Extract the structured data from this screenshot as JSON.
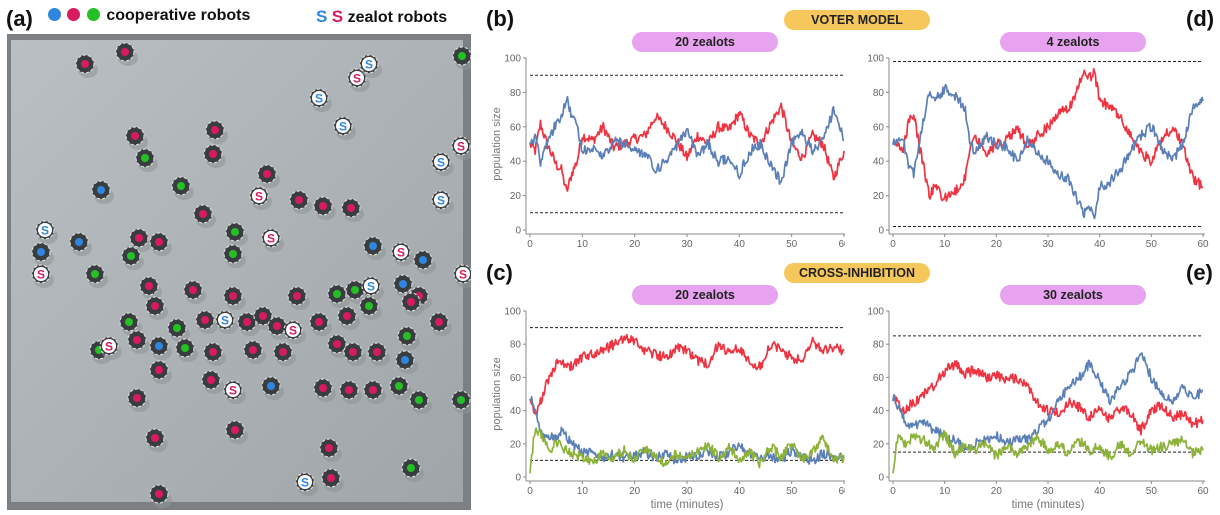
{
  "labels": {
    "a": "(a)",
    "b": "(b)",
    "c": "(c)",
    "d": "(d)",
    "e": "(e)",
    "cooperative": "cooperative robots",
    "zealot": "zealot robots",
    "zealot_glyph": "S",
    "voter_model": "VOTER MODEL",
    "cross_inhibition": "CROSS-INHIBITION"
  },
  "colors": {
    "red": "#ef3340",
    "blue": "#5b80b8",
    "green": "#8db23a",
    "coop_blue": "#2f86e0",
    "coop_pink": "#d81b60",
    "coop_green": "#25c025",
    "pill_violet": "#e7a3f0",
    "pill_orange": "#f6c85c"
  },
  "chart_data": [
    {
      "panel": "b",
      "type": "line",
      "title": "20 zealots",
      "xlabel": "",
      "ylabel": "population size",
      "xlim": [
        0,
        60
      ],
      "ylim": [
        0,
        100
      ],
      "xticks": [
        "0",
        "10",
        "20",
        "30",
        "40",
        "50",
        "60"
      ],
      "yticks": [
        "0",
        "20",
        "40",
        "60",
        "80",
        "100"
      ],
      "thresholds": [
        90,
        10
      ],
      "series": [
        {
          "color": "red",
          "x": [
            0,
            1,
            2,
            3,
            4,
            5,
            6,
            7,
            8,
            9,
            10,
            12,
            14,
            16,
            18,
            20,
            22,
            24,
            26,
            28,
            30,
            32,
            34,
            36,
            38,
            40,
            42,
            44,
            46,
            48,
            50,
            52,
            54,
            56,
            58,
            60
          ],
          "values": [
            50,
            46,
            62,
            52,
            45,
            38,
            35,
            22,
            33,
            40,
            55,
            52,
            60,
            48,
            50,
            53,
            55,
            66,
            60,
            52,
            42,
            55,
            50,
            60,
            58,
            68,
            55,
            50,
            62,
            72,
            50,
            42,
            55,
            50,
            30,
            46
          ]
        },
        {
          "color": "blue",
          "x": [
            0,
            1,
            2,
            3,
            4,
            5,
            6,
            7,
            8,
            9,
            10,
            12,
            14,
            16,
            18,
            20,
            22,
            24,
            26,
            28,
            30,
            32,
            34,
            36,
            38,
            40,
            42,
            44,
            46,
            48,
            50,
            52,
            54,
            56,
            58,
            60
          ],
          "values": [
            50,
            54,
            40,
            50,
            56,
            62,
            66,
            78,
            66,
            60,
            46,
            48,
            42,
            52,
            50,
            47,
            44,
            35,
            40,
            48,
            58,
            44,
            50,
            40,
            42,
            32,
            46,
            50,
            38,
            28,
            50,
            58,
            45,
            52,
            70,
            52
          ]
        }
      ]
    },
    {
      "panel": "d",
      "type": "line",
      "title": "4 zealots",
      "xlabel": "",
      "ylabel": "",
      "xlim": [
        0,
        60
      ],
      "ylim": [
        0,
        100
      ],
      "xticks": [
        "0",
        "10",
        "20",
        "30",
        "40",
        "50",
        "60"
      ],
      "yticks": [
        "0",
        "20",
        "40",
        "60",
        "80",
        "100"
      ],
      "thresholds": [
        98,
        2
      ],
      "series": [
        {
          "color": "red",
          "x": [
            0,
            2,
            3,
            4,
            5,
            6,
            7,
            8,
            10,
            12,
            14,
            15,
            16,
            18,
            20,
            22,
            24,
            26,
            28,
            30,
            32,
            34,
            36,
            37,
            38,
            39,
            40,
            42,
            44,
            46,
            48,
            50,
            52,
            54,
            56,
            58,
            60
          ],
          "values": [
            50,
            48,
            62,
            68,
            50,
            36,
            20,
            25,
            18,
            22,
            30,
            50,
            55,
            45,
            50,
            52,
            60,
            48,
            55,
            60,
            68,
            70,
            85,
            90,
            88,
            92,
            75,
            72,
            65,
            55,
            45,
            40,
            52,
            60,
            50,
            30,
            25
          ]
        },
        {
          "color": "blue",
          "x": [
            0,
            2,
            3,
            4,
            5,
            6,
            7,
            8,
            10,
            12,
            14,
            15,
            16,
            18,
            20,
            22,
            24,
            26,
            28,
            30,
            32,
            34,
            36,
            37,
            38,
            39,
            40,
            42,
            44,
            46,
            48,
            50,
            52,
            54,
            56,
            58,
            60
          ],
          "values": [
            50,
            52,
            38,
            32,
            50,
            64,
            80,
            75,
            82,
            78,
            70,
            50,
            45,
            55,
            50,
            48,
            40,
            52,
            45,
            40,
            32,
            30,
            15,
            10,
            12,
            8,
            25,
            28,
            35,
            45,
            55,
            60,
            48,
            40,
            50,
            70,
            75
          ]
        }
      ]
    },
    {
      "panel": "c",
      "type": "line",
      "title": "20 zealots",
      "xlabel": "time (minutes)",
      "ylabel": "population size",
      "xlim": [
        0,
        60
      ],
      "ylim": [
        0,
        100
      ],
      "xticks": [
        "0",
        "10",
        "20",
        "30",
        "40",
        "50",
        "60"
      ],
      "yticks": [
        "0",
        "20",
        "40",
        "60",
        "80",
        "100"
      ],
      "thresholds": [
        90,
        10
      ],
      "series": [
        {
          "color": "red",
          "x": [
            0,
            1,
            2,
            3,
            4,
            5,
            6,
            8,
            10,
            12,
            14,
            16,
            18,
            20,
            22,
            24,
            26,
            28,
            30,
            32,
            34,
            36,
            38,
            40,
            42,
            44,
            46,
            48,
            50,
            52,
            54,
            56,
            58,
            60
          ],
          "values": [
            48,
            38,
            45,
            55,
            60,
            68,
            70,
            66,
            72,
            74,
            76,
            80,
            84,
            82,
            76,
            74,
            72,
            78,
            76,
            70,
            68,
            80,
            74,
            78,
            70,
            66,
            80,
            76,
            72,
            70,
            82,
            76,
            78,
            76
          ]
        },
        {
          "color": "blue",
          "x": [
            0,
            1,
            2,
            3,
            4,
            5,
            6,
            8,
            10,
            12,
            14,
            16,
            18,
            20,
            22,
            24,
            26,
            28,
            30,
            32,
            34,
            36,
            38,
            40,
            42,
            44,
            46,
            48,
            50,
            52,
            54,
            56,
            58,
            60
          ],
          "values": [
            48,
            40,
            30,
            22,
            26,
            22,
            28,
            20,
            15,
            14,
            12,
            14,
            12,
            13,
            15,
            12,
            14,
            10,
            12,
            13,
            16,
            12,
            14,
            20,
            14,
            12,
            13,
            10,
            16,
            12,
            10,
            14,
            12,
            13
          ]
        },
        {
          "color": "green",
          "x": [
            0,
            1,
            2,
            3,
            4,
            5,
            6,
            8,
            10,
            12,
            14,
            16,
            18,
            20,
            22,
            24,
            26,
            28,
            30,
            32,
            34,
            36,
            38,
            40,
            42,
            44,
            46,
            48,
            50,
            52,
            54,
            56,
            58,
            60
          ],
          "values": [
            4,
            30,
            25,
            20,
            16,
            22,
            18,
            14,
            12,
            10,
            14,
            12,
            16,
            10,
            18,
            12,
            8,
            14,
            10,
            16,
            20,
            12,
            18,
            10,
            15,
            8,
            18,
            12,
            20,
            10,
            14,
            24,
            10,
            12
          ]
        }
      ]
    },
    {
      "panel": "e",
      "type": "line",
      "title": "30 zealots",
      "xlabel": "time (minutes)",
      "ylabel": "",
      "xlim": [
        0,
        60
      ],
      "ylim": [
        0,
        100
      ],
      "xticks": [
        "0",
        "10",
        "20",
        "30",
        "40",
        "50",
        "60"
      ],
      "yticks": [
        "0",
        "20",
        "40",
        "60",
        "80",
        "100"
      ],
      "thresholds": [
        85,
        15
      ],
      "series": [
        {
          "color": "red",
          "x": [
            0,
            1,
            2,
            4,
            6,
            8,
            10,
            12,
            14,
            16,
            18,
            20,
            22,
            24,
            26,
            28,
            30,
            32,
            34,
            36,
            38,
            40,
            42,
            44,
            46,
            48,
            50,
            52,
            54,
            56,
            58,
            60
          ],
          "values": [
            48,
            44,
            40,
            45,
            50,
            55,
            64,
            68,
            62,
            65,
            60,
            62,
            58,
            60,
            55,
            45,
            40,
            38,
            45,
            42,
            36,
            40,
            35,
            42,
            38,
            28,
            40,
            44,
            36,
            38,
            32,
            34
          ]
        },
        {
          "color": "blue",
          "x": [
            0,
            1,
            2,
            4,
            6,
            8,
            10,
            12,
            14,
            16,
            18,
            20,
            22,
            24,
            26,
            28,
            30,
            32,
            34,
            36,
            38,
            40,
            42,
            44,
            46,
            48,
            50,
            52,
            54,
            56,
            58,
            60
          ],
          "values": [
            48,
            42,
            35,
            30,
            33,
            28,
            25,
            22,
            18,
            20,
            22,
            25,
            20,
            24,
            22,
            28,
            35,
            45,
            55,
            60,
            68,
            58,
            45,
            55,
            62,
            74,
            60,
            50,
            45,
            55,
            48,
            52
          ]
        },
        {
          "color": "green",
          "x": [
            0,
            1,
            2,
            4,
            6,
            8,
            10,
            12,
            14,
            16,
            18,
            20,
            22,
            24,
            26,
            28,
            30,
            32,
            34,
            36,
            38,
            40,
            42,
            44,
            46,
            48,
            50,
            52,
            54,
            56,
            58,
            60
          ],
          "values": [
            5,
            25,
            20,
            24,
            22,
            18,
            26,
            14,
            20,
            16,
            22,
            12,
            20,
            14,
            18,
            24,
            16,
            20,
            14,
            22,
            16,
            18,
            12,
            20,
            14,
            22,
            16,
            18,
            20,
            22,
            14,
            16
          ]
        }
      ]
    }
  ]
}
